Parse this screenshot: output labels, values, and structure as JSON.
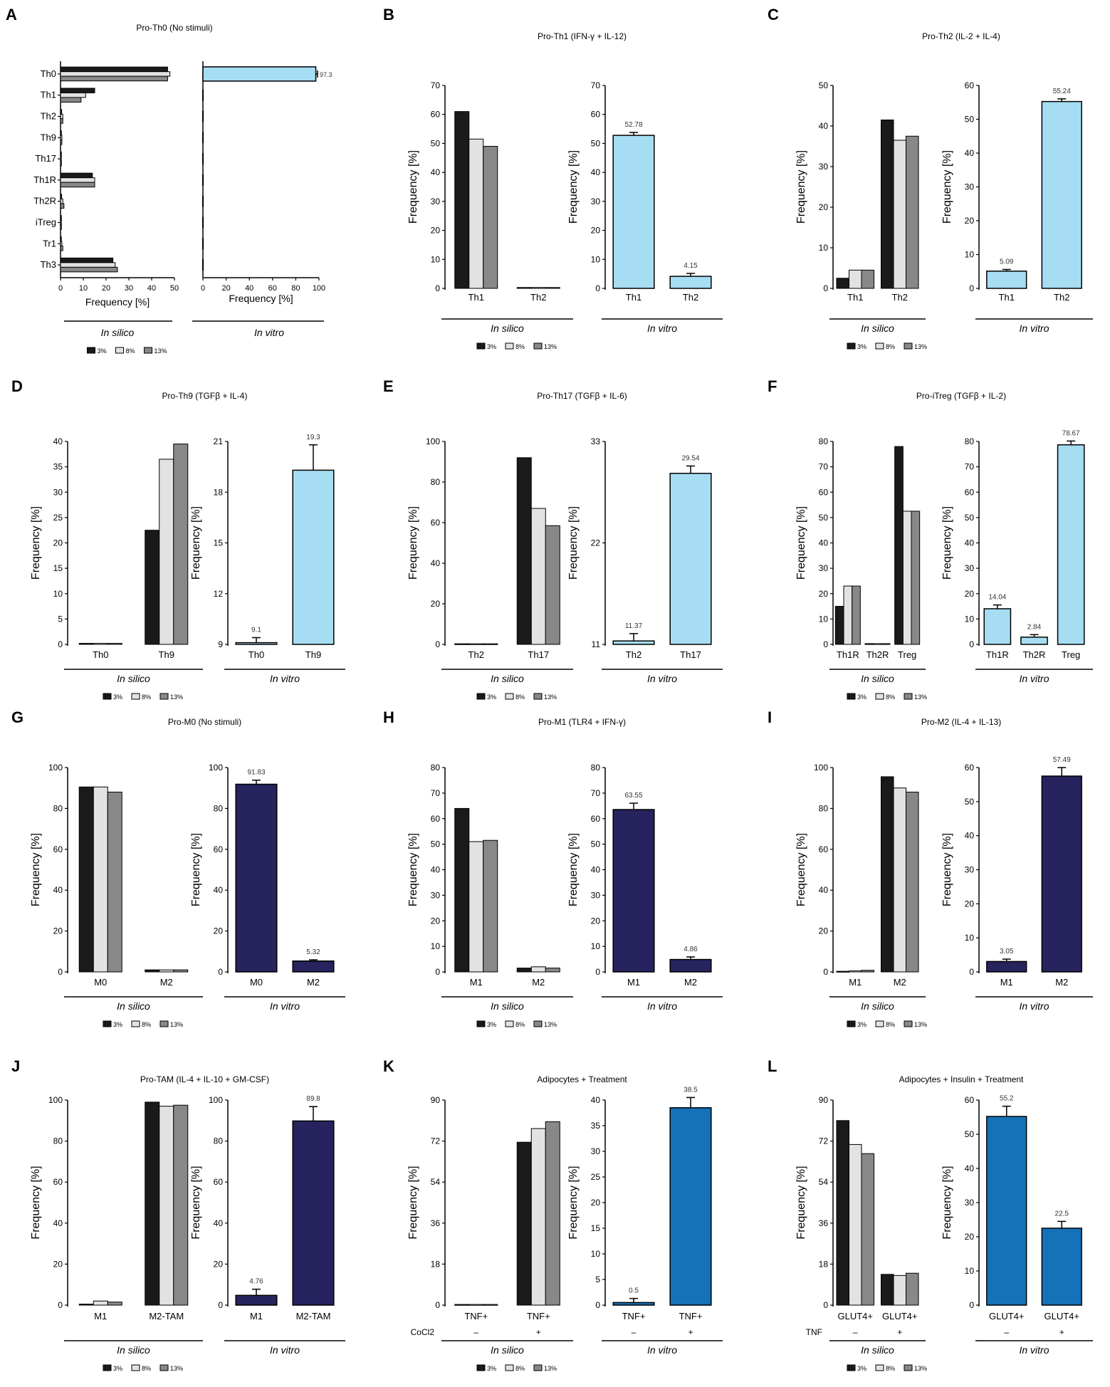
{
  "colors": {
    "silico": [
      "#1a1a1a",
      "#e2e2e2",
      "#888888"
    ],
    "vitro_th": "#a6ddf2",
    "vitro_mac": "#26235e",
    "vitro_adip": "#1672b8"
  },
  "common": {
    "ylabel": "Frequency [%]",
    "xlabel": "Frequency [%]",
    "silico_label": "In silico",
    "vitro_label": "In vitro",
    "legend": [
      "3%",
      "8%",
      "13%"
    ]
  },
  "chart_data": [
    {
      "panel": "A",
      "type": "bar",
      "orientation": "horizontal",
      "title": "Pro-Th0 (No stimuli)",
      "categories": [
        "Th0",
        "Th1",
        "Th2",
        "Th9",
        "Th17",
        "Th1R",
        "Th2R",
        "iTreg",
        "Tr1",
        "Th3"
      ],
      "silico": {
        "series": [
          {
            "name": "3%",
            "values": [
              47,
              15,
              0.5,
              0.4,
              0.3,
              14,
              0.5,
              0.3,
              0.3,
              23
            ]
          },
          {
            "name": "8%",
            "values": [
              48,
              11,
              1,
              0.6,
              0.3,
              15,
              1,
              0.4,
              0.6,
              24
            ]
          },
          {
            "name": "13%",
            "values": [
              47,
              9,
              1,
              0.6,
              0.4,
              15,
              1.5,
              0.4,
              1,
              25
            ]
          }
        ],
        "xlim": [
          0,
          50
        ],
        "ticks": [
          0,
          10,
          20,
          30,
          40,
          50
        ]
      },
      "vitro": {
        "values": [
          97.3,
          0,
          0,
          0,
          0,
          0,
          0,
          0,
          0,
          0
        ],
        "errors": [
          1.5,
          0,
          0,
          0,
          0,
          0,
          0,
          0,
          0,
          0
        ],
        "labels": [
          "97.3",
          null,
          null,
          null,
          null,
          null,
          null,
          null,
          null,
          null
        ],
        "xlim": [
          0,
          100
        ],
        "ticks": [
          0,
          20,
          40,
          60,
          80,
          100
        ],
        "color": "th"
      }
    },
    {
      "panel": "B",
      "type": "bar",
      "title": "Pro-Th1 (IFN-γ + IL-12)",
      "categories": [
        "Th1",
        "Th2"
      ],
      "silico": {
        "series": [
          {
            "name": "3%",
            "values": [
              61,
              0.3
            ]
          },
          {
            "name": "8%",
            "values": [
              51.5,
              0.3
            ]
          },
          {
            "name": "13%",
            "values": [
              49,
              0.3
            ]
          }
        ],
        "ylim": [
          0,
          70
        ],
        "ticks": [
          0,
          10,
          20,
          30,
          40,
          50,
          60,
          70
        ]
      },
      "vitro": {
        "values": [
          52.78,
          4.15
        ],
        "errors": [
          1,
          1
        ],
        "labels": [
          "52.78",
          "4.15"
        ],
        "ylim": [
          0,
          70
        ],
        "ticks": [
          0,
          10,
          20,
          30,
          40,
          50,
          60,
          70
        ],
        "color": "th"
      }
    },
    {
      "panel": "C",
      "type": "bar",
      "title": "Pro-Th2 (IL-2 + IL-4)",
      "categories": [
        "Th1",
        "Th2"
      ],
      "silico": {
        "series": [
          {
            "name": "3%",
            "values": [
              2.5,
              41.5
            ]
          },
          {
            "name": "8%",
            "values": [
              4.5,
              36.5
            ]
          },
          {
            "name": "13%",
            "values": [
              4.5,
              37.5
            ]
          }
        ],
        "ylim": [
          0,
          50
        ],
        "ticks": [
          0,
          10,
          20,
          30,
          40,
          50
        ]
      },
      "vitro": {
        "values": [
          5.09,
          55.24
        ],
        "errors": [
          0.5,
          0.8
        ],
        "labels": [
          "5.09",
          "55.24"
        ],
        "ylim": [
          0,
          60
        ],
        "ticks": [
          0,
          10,
          20,
          30,
          40,
          50,
          60
        ],
        "color": "th"
      }
    },
    {
      "panel": "D",
      "type": "bar",
      "title": "Pro-Th9 (TGFβ + IL-4)",
      "categories": [
        "Th0",
        "Th9"
      ],
      "silico": {
        "series": [
          {
            "name": "3%",
            "values": [
              0.2,
              22.5
            ]
          },
          {
            "name": "8%",
            "values": [
              0.2,
              36.5
            ]
          },
          {
            "name": "13%",
            "values": [
              0.2,
              39.5
            ]
          }
        ],
        "ylim": [
          0,
          40
        ],
        "ticks": [
          0,
          5,
          10,
          15,
          20,
          25,
          30,
          35,
          40
        ]
      },
      "vitro": {
        "values": [
          9.1,
          19.3
        ],
        "errors": [
          0.3,
          1.5
        ],
        "labels": [
          "9.1",
          "19.3"
        ],
        "ylim": [
          9,
          21
        ],
        "ticks": [
          9,
          12,
          15,
          18,
          21
        ],
        "color": "th"
      }
    },
    {
      "panel": "E",
      "type": "bar",
      "title": "Pro-Th17 (TGFβ + IL-6)",
      "categories": [
        "Th2",
        "Th17"
      ],
      "silico": {
        "series": [
          {
            "name": "3%",
            "values": [
              0.3,
              92
            ]
          },
          {
            "name": "8%",
            "values": [
              0.3,
              67
            ]
          },
          {
            "name": "13%",
            "values": [
              0.3,
              58.5
            ]
          }
        ],
        "ylim": [
          0,
          100
        ],
        "ticks": [
          0,
          20,
          40,
          60,
          80,
          100
        ]
      },
      "vitro": {
        "values": [
          11.37,
          29.54
        ],
        "errors": [
          0.8,
          0.8
        ],
        "labels": [
          "11.37",
          "29.54"
        ],
        "ylim": [
          11,
          33
        ],
        "ticks": [
          11,
          22,
          33
        ],
        "color": "th"
      }
    },
    {
      "panel": "F",
      "type": "bar",
      "title": "Pro-iTreg (TGFβ + IL-2)",
      "categories": [
        "Th1R",
        "Th2R",
        "Treg"
      ],
      "silico": {
        "series": [
          {
            "name": "3%",
            "values": [
              15,
              0.3,
              78
            ]
          },
          {
            "name": "8%",
            "values": [
              23,
              0.3,
              52.5
            ]
          },
          {
            "name": "13%",
            "values": [
              23,
              0.3,
              52.5
            ]
          }
        ],
        "ylim": [
          0,
          80
        ],
        "ticks": [
          0,
          10,
          20,
          30,
          40,
          50,
          60,
          70,
          80
        ]
      },
      "vitro": {
        "values": [
          14.04,
          2.84,
          78.67
        ],
        "errors": [
          1.5,
          1,
          1.5
        ],
        "labels": [
          "14.04",
          "2.84",
          "78.67"
        ],
        "ylim": [
          0,
          80
        ],
        "ticks": [
          0,
          10,
          20,
          30,
          40,
          50,
          60,
          70,
          80
        ],
        "color": "th"
      }
    },
    {
      "panel": "G",
      "type": "bar",
      "title": "Pro-M0 (No stimuli)",
      "categories": [
        "M0",
        "M2"
      ],
      "silico": {
        "series": [
          {
            "name": "3%",
            "values": [
              90.5,
              1
            ]
          },
          {
            "name": "8%",
            "values": [
              90.5,
              1
            ]
          },
          {
            "name": "13%",
            "values": [
              88,
              1
            ]
          }
        ],
        "ylim": [
          0,
          100
        ],
        "ticks": [
          0,
          20,
          40,
          60,
          80,
          100
        ]
      },
      "vitro": {
        "values": [
          91.83,
          5.32
        ],
        "errors": [
          2,
          0.6
        ],
        "labels": [
          "91.83",
          "5.32"
        ],
        "ylim": [
          0,
          100
        ],
        "ticks": [
          0,
          20,
          40,
          60,
          80,
          100
        ],
        "color": "mac"
      }
    },
    {
      "panel": "H",
      "type": "bar",
      "title": "Pro-M1 (TLR4 + IFN-γ)",
      "categories": [
        "M1",
        "M2"
      ],
      "silico": {
        "series": [
          {
            "name": "3%",
            "values": [
              64,
              1.5
            ]
          },
          {
            "name": "8%",
            "values": [
              51,
              2
            ]
          },
          {
            "name": "13%",
            "values": [
              51.5,
              1.5
            ]
          }
        ],
        "ylim": [
          0,
          80
        ],
        "ticks": [
          0,
          10,
          20,
          30,
          40,
          50,
          60,
          70,
          80
        ]
      },
      "vitro": {
        "values": [
          63.55,
          4.86
        ],
        "errors": [
          2.5,
          1
        ],
        "labels": [
          "63.55",
          "4.86"
        ],
        "ylim": [
          0,
          80
        ],
        "ticks": [
          0,
          10,
          20,
          30,
          40,
          50,
          60,
          70,
          80
        ],
        "color": "mac"
      }
    },
    {
      "panel": "I",
      "type": "bar",
      "title": "Pro-M2 (IL-4 + IL-13)",
      "categories": [
        "M1",
        "M2"
      ],
      "silico": {
        "series": [
          {
            "name": "3%",
            "values": [
              0.3,
              95.5
            ]
          },
          {
            "name": "8%",
            "values": [
              0.5,
              90
            ]
          },
          {
            "name": "13%",
            "values": [
              0.8,
              88
            ]
          }
        ],
        "ylim": [
          0,
          100
        ],
        "ticks": [
          0,
          20,
          40,
          60,
          80,
          100
        ]
      },
      "vitro": {
        "values": [
          3.05,
          57.49
        ],
        "errors": [
          0.7,
          2.5
        ],
        "labels": [
          "3.05",
          "57.49"
        ],
        "ylim": [
          0,
          60
        ],
        "ticks": [
          0,
          10,
          20,
          30,
          40,
          50,
          60
        ],
        "color": "mac"
      }
    },
    {
      "panel": "J",
      "type": "bar",
      "title": "Pro-TAM (IL-4 + IL-10 + GM-CSF)",
      "categories": [
        "M1",
        "M2-TAM"
      ],
      "silico": {
        "series": [
          {
            "name": "3%",
            "values": [
              0.5,
              99
            ]
          },
          {
            "name": "8%",
            "values": [
              2,
              97
            ]
          },
          {
            "name": "13%",
            "values": [
              1.5,
              97.5
            ]
          }
        ],
        "ylim": [
          0,
          100
        ],
        "ticks": [
          0,
          20,
          40,
          60,
          80,
          100
        ]
      },
      "vitro": {
        "values": [
          4.76,
          89.8
        ],
        "errors": [
          3,
          7
        ],
        "labels": [
          "4.76",
          "89.8"
        ],
        "ylim": [
          0,
          100
        ],
        "ticks": [
          0,
          20,
          40,
          60,
          80,
          100
        ],
        "color": "mac"
      }
    },
    {
      "panel": "K",
      "type": "bar",
      "title": "Adipocytes + Treatment",
      "categories": [
        "TNF+",
        "TNF+"
      ],
      "treatment": {
        "label": "CoCl2",
        "values": [
          "–",
          "+"
        ]
      },
      "silico": {
        "series": [
          {
            "name": "3%",
            "values": [
              0.3,
              71.5
            ]
          },
          {
            "name": "8%",
            "values": [
              0.3,
              77.5
            ]
          },
          {
            "name": "13%",
            "values": [
              0.3,
              80.5
            ]
          }
        ],
        "ylim": [
          0,
          90
        ],
        "ticks": [
          0,
          18,
          36,
          54,
          72,
          90
        ]
      },
      "vitro": {
        "values": [
          0.5,
          38.5
        ],
        "errors": [
          0.8,
          2
        ],
        "labels": [
          "0.5",
          "38.5"
        ],
        "ylim": [
          0,
          40
        ],
        "ticks": [
          0,
          5,
          10,
          15,
          20,
          25,
          30,
          35,
          40
        ],
        "color": "adip"
      }
    },
    {
      "panel": "L",
      "type": "bar",
      "title": "Adipocytes + Insulin + Treatment",
      "categories": [
        "GLUT4+",
        "GLUT4+"
      ],
      "treatment": {
        "label": "TNF",
        "values": [
          "–",
          "+"
        ]
      },
      "silico": {
        "series": [
          {
            "name": "3%",
            "values": [
              81,
              13.5
            ]
          },
          {
            "name": "8%",
            "values": [
              70.5,
              13
            ]
          },
          {
            "name": "13%",
            "values": [
              66.5,
              14
            ]
          }
        ],
        "ylim": [
          0,
          90
        ],
        "ticks": [
          0,
          18,
          36,
          54,
          72,
          90
        ]
      },
      "vitro": {
        "values": [
          55.2,
          22.5
        ],
        "errors": [
          3,
          2
        ],
        "labels": [
          "55.2",
          "22.5"
        ],
        "ylim": [
          0,
          60
        ],
        "ticks": [
          0,
          10,
          20,
          30,
          40,
          50,
          60
        ],
        "color": "adip"
      }
    }
  ]
}
